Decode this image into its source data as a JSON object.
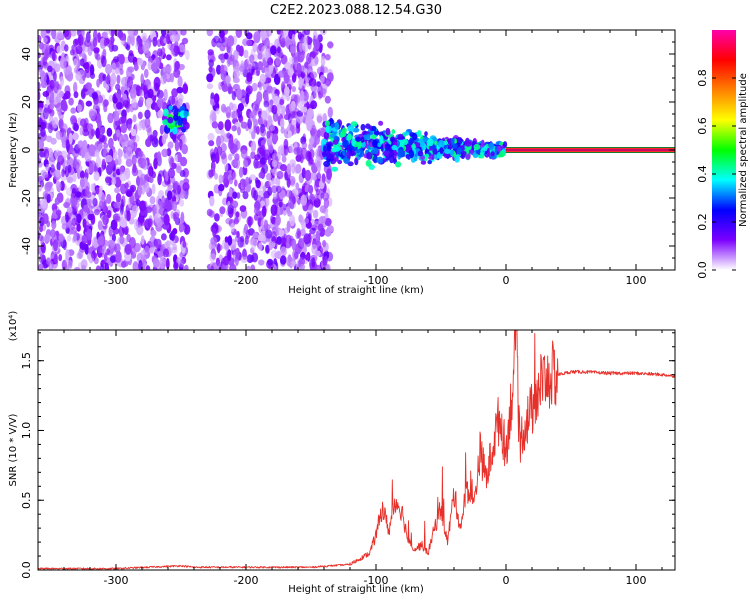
{
  "title": "C2E2.2023.088.12.54.G30",
  "chart_data": [
    {
      "type": "heatmap",
      "name": "spectrogram",
      "xlabel": "Height of straight line (km)",
      "ylabel": "Frequency (Hz)",
      "xlim": [
        -360,
        130
      ],
      "ylim": [
        -50,
        50
      ],
      "xticks": [
        -300,
        -200,
        -100,
        0,
        100
      ],
      "xtick_labels": [
        "-300",
        "-200",
        "-100",
        "0",
        "100"
      ],
      "yticks": [
        -40,
        -20,
        0,
        20,
        40
      ],
      "ytick_labels": [
        "-40",
        "-20",
        "0",
        "20",
        "40"
      ],
      "colorbar": {
        "label": "Normalized spectral amplitude",
        "range": [
          0.0,
          1.0
        ],
        "ticks": [
          0.0,
          0.2,
          0.4,
          0.6,
          0.8
        ],
        "tick_labels": [
          "0.0",
          "0.2",
          "0.4",
          "0.6",
          "0.8"
        ],
        "colors": [
          "#ffffff",
          "#7b00ff",
          "#0000ff",
          "#00ffff",
          "#00ff00",
          "#ffff00",
          "#ff8000",
          "#ff0000",
          "#ff00aa"
        ]
      },
      "regions": [
        {
          "description": "noise",
          "x_range": [
            -360,
            -135
          ],
          "freq_range": [
            -50,
            50
          ],
          "amplitude": 0.1
        },
        {
          "description": "signal_onset",
          "x_range": [
            -262,
            -245
          ],
          "freq_range": [
            8,
            18
          ],
          "amplitude": 0.4
        },
        {
          "description": "signal_band",
          "x_range": [
            -140,
            0
          ],
          "freq_range": [
            -10,
            12
          ],
          "amplitude": 0.35
        },
        {
          "description": "carrier_line",
          "x_range": [
            0,
            130
          ],
          "freq_range": [
            -1,
            1
          ],
          "amplitude": 0.95
        }
      ]
    },
    {
      "type": "line",
      "name": "snr",
      "xlabel": "Height of straight line (km)",
      "ylabel": "SNR (10 * V/V)",
      "y_multiplier_label": "(x10⁴)",
      "xlim": [
        -360,
        130
      ],
      "ylim": [
        0,
        1.72
      ],
      "xticks": [
        -300,
        -200,
        -100,
        0,
        100
      ],
      "xtick_labels": [
        "-300",
        "-200",
        "-100",
        "0",
        "100"
      ],
      "yticks": [
        0.0,
        0.5,
        1.0,
        1.5
      ],
      "ytick_labels": [
        "0.0",
        "0.5",
        "1.0",
        "1.5"
      ],
      "series": [
        {
          "name": "SNR",
          "color": "#e8302a",
          "x": [
            -360,
            -300,
            -250,
            -240,
            -200,
            -150,
            -120,
            -105,
            -100,
            -95,
            -90,
            -85,
            -80,
            -75,
            -70,
            -65,
            -60,
            -55,
            -50,
            -45,
            -40,
            -35,
            -30,
            -25,
            -20,
            -15,
            -10,
            -5,
            0,
            5,
            8,
            10,
            15,
            20,
            25,
            30,
            40,
            50,
            60,
            80,
            100,
            120,
            130
          ],
          "y": [
            0.01,
            0.01,
            0.03,
            0.02,
            0.02,
            0.02,
            0.04,
            0.12,
            0.25,
            0.45,
            0.28,
            0.5,
            0.42,
            0.2,
            0.15,
            0.18,
            0.12,
            0.3,
            0.45,
            0.2,
            0.55,
            0.3,
            0.6,
            0.45,
            0.85,
            0.65,
            0.9,
            1.1,
            0.85,
            1.3,
            1.7,
            0.9,
            1.05,
            1.15,
            1.3,
            1.38,
            1.4,
            1.42,
            1.42,
            1.41,
            1.41,
            1.4,
            1.39
          ]
        }
      ]
    }
  ]
}
